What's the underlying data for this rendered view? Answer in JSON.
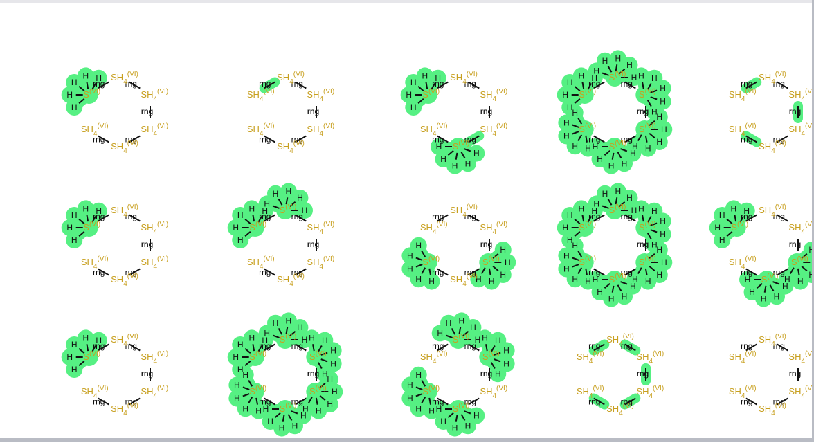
{
  "labels": {
    "ring_label": "rng",
    "sh4_base": "SH",
    "sh4_sub": "4",
    "sh4_ox": "(VI)",
    "s_base": "S",
    "hydrogen": "H"
  },
  "colors": {
    "highlight": "#56f083",
    "sh4_text": "#c8a020",
    "bond": "#111111",
    "text": "#111111"
  },
  "grid": {
    "rows": [
      {
        "cells": [
          {
            "hydrogens": [
              0
            ],
            "hl_rng": []
          },
          {
            "hydrogens": [],
            "hl_rng": [
              0
            ]
          },
          {
            "hydrogens": [
              0,
              4
            ],
            "hl_rng": [
              3
            ]
          },
          {
            "hydrogens": [
              0,
              1,
              2,
              3,
              4,
              5
            ],
            "hl_rng": []
          },
          {
            "hydrogens": [],
            "hl_rng": [
              0,
              2,
              4
            ]
          }
        ]
      },
      {
        "cells": [
          {
            "hydrogens": [
              0
            ],
            "hl_rng": []
          },
          {
            "hydrogens": [
              0,
              1
            ],
            "hl_rng": []
          },
          {
            "hydrogens": [
              5,
              3
            ],
            "hl_rng": []
          },
          {
            "hydrogens": [
              0,
              1,
              2,
              3,
              4,
              5
            ],
            "hl_rng": []
          },
          {
            "hydrogens": [
              0,
              4,
              3
            ],
            "hl_rng": []
          }
        ]
      },
      {
        "cells": [
          {
            "hydrogens": [
              0
            ],
            "hl_rng": []
          },
          {
            "hydrogens": [
              0,
              1,
              2,
              3,
              4,
              5
            ],
            "hl_rng": []
          },
          {
            "hydrogens": [
              5,
              1,
              4,
              2
            ],
            "hl_rng": []
          },
          {
            "hydrogens": [],
            "hl_rng": [
              0,
              1,
              2,
              3,
              4,
              5
            ]
          },
          {
            "hydrogens": [],
            "hl_rng": []
          }
        ]
      }
    ]
  }
}
